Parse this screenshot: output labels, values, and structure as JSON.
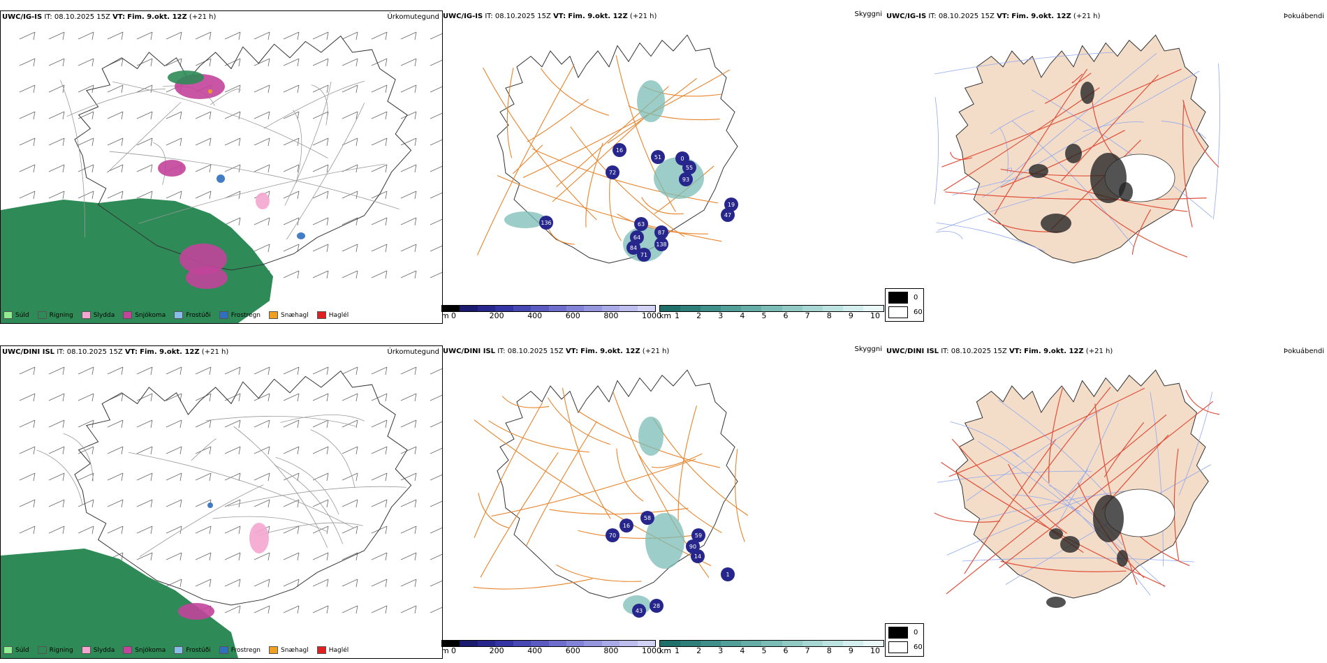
{
  "rows": [
    {
      "model": "UWC/IG-IS",
      "it_label": "IT:",
      "it_value": "08.10.2025 15Z",
      "vt_label": "VT:",
      "vt_value": "Fim. 9.okt. 12Z",
      "lead": "(+21 h)",
      "precip_title": "Úrkomutegund",
      "cloud_title": "Skyggni",
      "fog_title": "Þokuábendi",
      "visibility_labels": [
        "51",
        "72",
        "16",
        "93",
        "55",
        "0",
        "136",
        "63",
        "87",
        "64",
        "138",
        "71",
        "84",
        "47",
        "19"
      ]
    },
    {
      "model": "UWC/DINI ISL",
      "it_label": "IT:",
      "it_value": "08.10.2025 15Z",
      "vt_label": "VT:",
      "vt_value": "Fim. 9.okt. 12Z",
      "lead": "(+21 h)",
      "precip_title": "Úrkomutegund",
      "cloud_title": "Skyggni",
      "fog_title": "Þokuábendi",
      "visibility_labels": [
        "58",
        "59",
        "90",
        "14",
        "70",
        "16",
        "43",
        "28",
        "1"
      ]
    }
  ],
  "precip_legend": [
    {
      "label": "Súld",
      "color": "#90ee90"
    },
    {
      "label": "Rigning",
      "color": "#2e8b57"
    },
    {
      "label": "Slydda",
      "color": "#f4a6d0"
    },
    {
      "label": "Snjókoma",
      "color": "#c2449b"
    },
    {
      "label": "Frostúði",
      "color": "#87bde8"
    },
    {
      "label": "Frostregn",
      "color": "#2f6fc0"
    },
    {
      "label": "Snæhagl",
      "color": "#f0a020"
    },
    {
      "label": "Haglél",
      "color": "#e02020"
    }
  ],
  "height_bar": {
    "unit": "m",
    "ticks": [
      "0",
      "200",
      "400",
      "600",
      "800",
      "1000"
    ],
    "colors": [
      "#000000",
      "#1a1a6e",
      "#26268c",
      "#3434a4",
      "#4848b4",
      "#5a5ac0",
      "#6e6ecc",
      "#8282d6",
      "#9696de",
      "#aaaae6",
      "#bebeee",
      "#d2d2f4"
    ]
  },
  "cloud_bar": {
    "unit": "km",
    "ticks": [
      "1",
      "2",
      "3",
      "4",
      "5",
      "6",
      "7",
      "8",
      "9",
      "10"
    ],
    "colors": [
      "#1f6f6a",
      "#2e7f7a",
      "#3f8f8a",
      "#529e98",
      "#66ada7",
      "#7bbcb6",
      "#91cac5",
      "#a7d7d3",
      "#bde3e0",
      "#d3eeec",
      "#e9f7f6"
    ]
  },
  "fog_legend": [
    {
      "label": "0",
      "color": "#000000"
    },
    {
      "label": "60",
      "color": "#ffffff"
    }
  ],
  "colors": {
    "rain": "#2e8b57",
    "snow": "#c2449b",
    "sleet": "#f4a6d0",
    "road": "#e8832a",
    "fog_land": "#f3dcc8",
    "fog_road": "#e0503a",
    "river": "#8fa8f0"
  }
}
